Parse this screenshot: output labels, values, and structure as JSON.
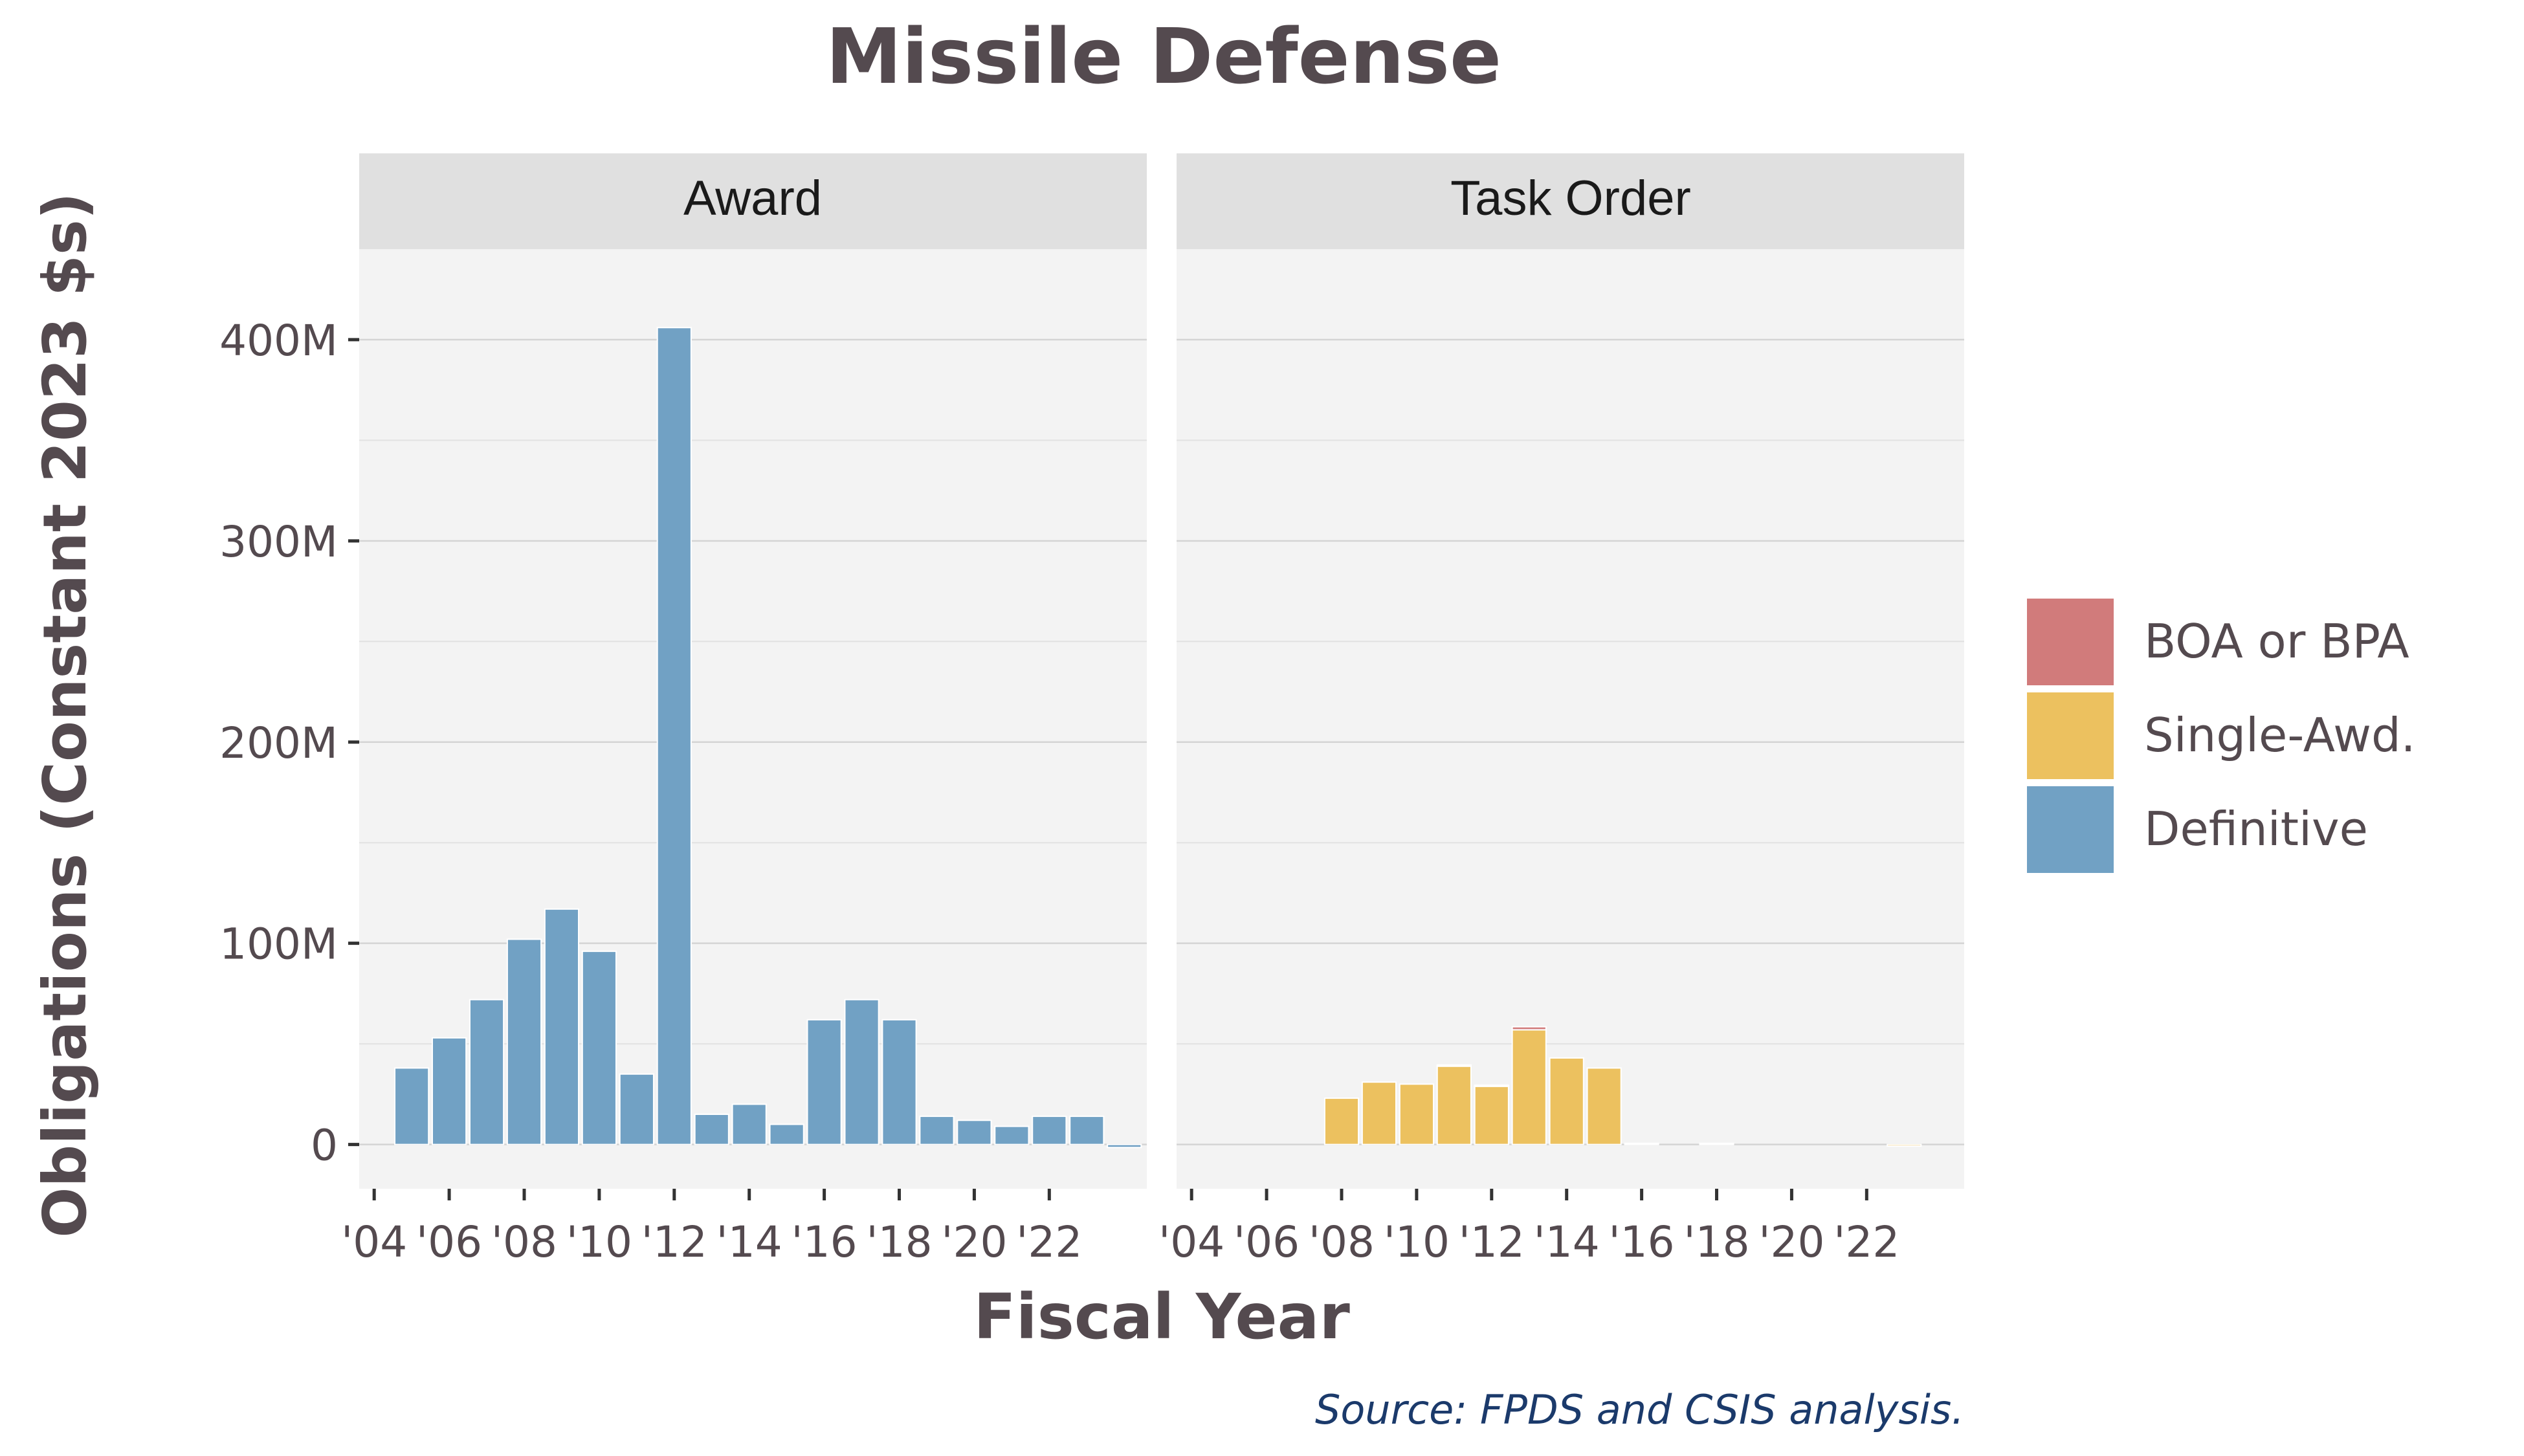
{
  "chart_data": {
    "type": "bar",
    "stacked": true,
    "title": "Missile Defense",
    "xlabel": "Fiscal Year",
    "ylabel": "Obligations (Constant 2023 $s)",
    "caption": "Source: FPDS and CSIS analysis.",
    "ylim": [
      -22000000,
      445000000
    ],
    "yticks": [
      0,
      100000000,
      200000000,
      300000000,
      400000000
    ],
    "ytick_labels": [
      "0",
      "100M",
      "200M",
      "300M",
      "400M"
    ],
    "xlim": [
      2003.6,
      2024.6
    ],
    "xticks": [
      2004,
      2006,
      2008,
      2010,
      2012,
      2014,
      2016,
      2018,
      2020,
      2022
    ],
    "xtick_labels": [
      "'04",
      "'06",
      "'08",
      "'10",
      "'12",
      "'14",
      "'16",
      "'18",
      "'20",
      "'22"
    ],
    "grid": true,
    "legend_position": "right",
    "legend": [
      {
        "name": "BOA or BPA",
        "color": "#d17b7b"
      },
      {
        "name": "Single-Awd.",
        "color": "#ecc15f"
      },
      {
        "name": "Definitive",
        "color": "#71a1c4"
      }
    ],
    "panels": [
      {
        "label": "Award",
        "series": [
          {
            "name": "Definitive",
            "color": "#71a1c4",
            "x": [
              2005,
              2006,
              2007,
              2008,
              2009,
              2010,
              2011,
              2012,
              2013,
              2014,
              2015,
              2016,
              2017,
              2018,
              2019,
              2020,
              2021,
              2022,
              2023,
              2024
            ],
            "values": [
              38000000,
              53000000,
              72000000,
              102000000,
              117000000,
              96000000,
              35000000,
              406000000,
              15000000,
              20000000,
              10000000,
              62000000,
              72000000,
              62000000,
              14000000,
              12000000,
              9000000,
              14000000,
              14000000,
              -1500000
            ]
          }
        ]
      },
      {
        "label": "Task Order",
        "series": [
          {
            "name": "Single-Awd.",
            "color": "#ecc15f",
            "x": [
              2008,
              2009,
              2010,
              2011,
              2012,
              2013,
              2014,
              2015,
              2016,
              2018,
              2023
            ],
            "values": [
              23000000,
              31000000,
              30000000,
              39000000,
              29000000,
              57000000,
              43000000,
              38000000,
              600000,
              600000,
              -800000
            ]
          },
          {
            "name": "BOA or BPA",
            "color": "#d17b7b",
            "x": [
              2011,
              2012,
              2013
            ],
            "values": [
              500000,
              500000,
              1500000
            ]
          }
        ]
      }
    ]
  }
}
